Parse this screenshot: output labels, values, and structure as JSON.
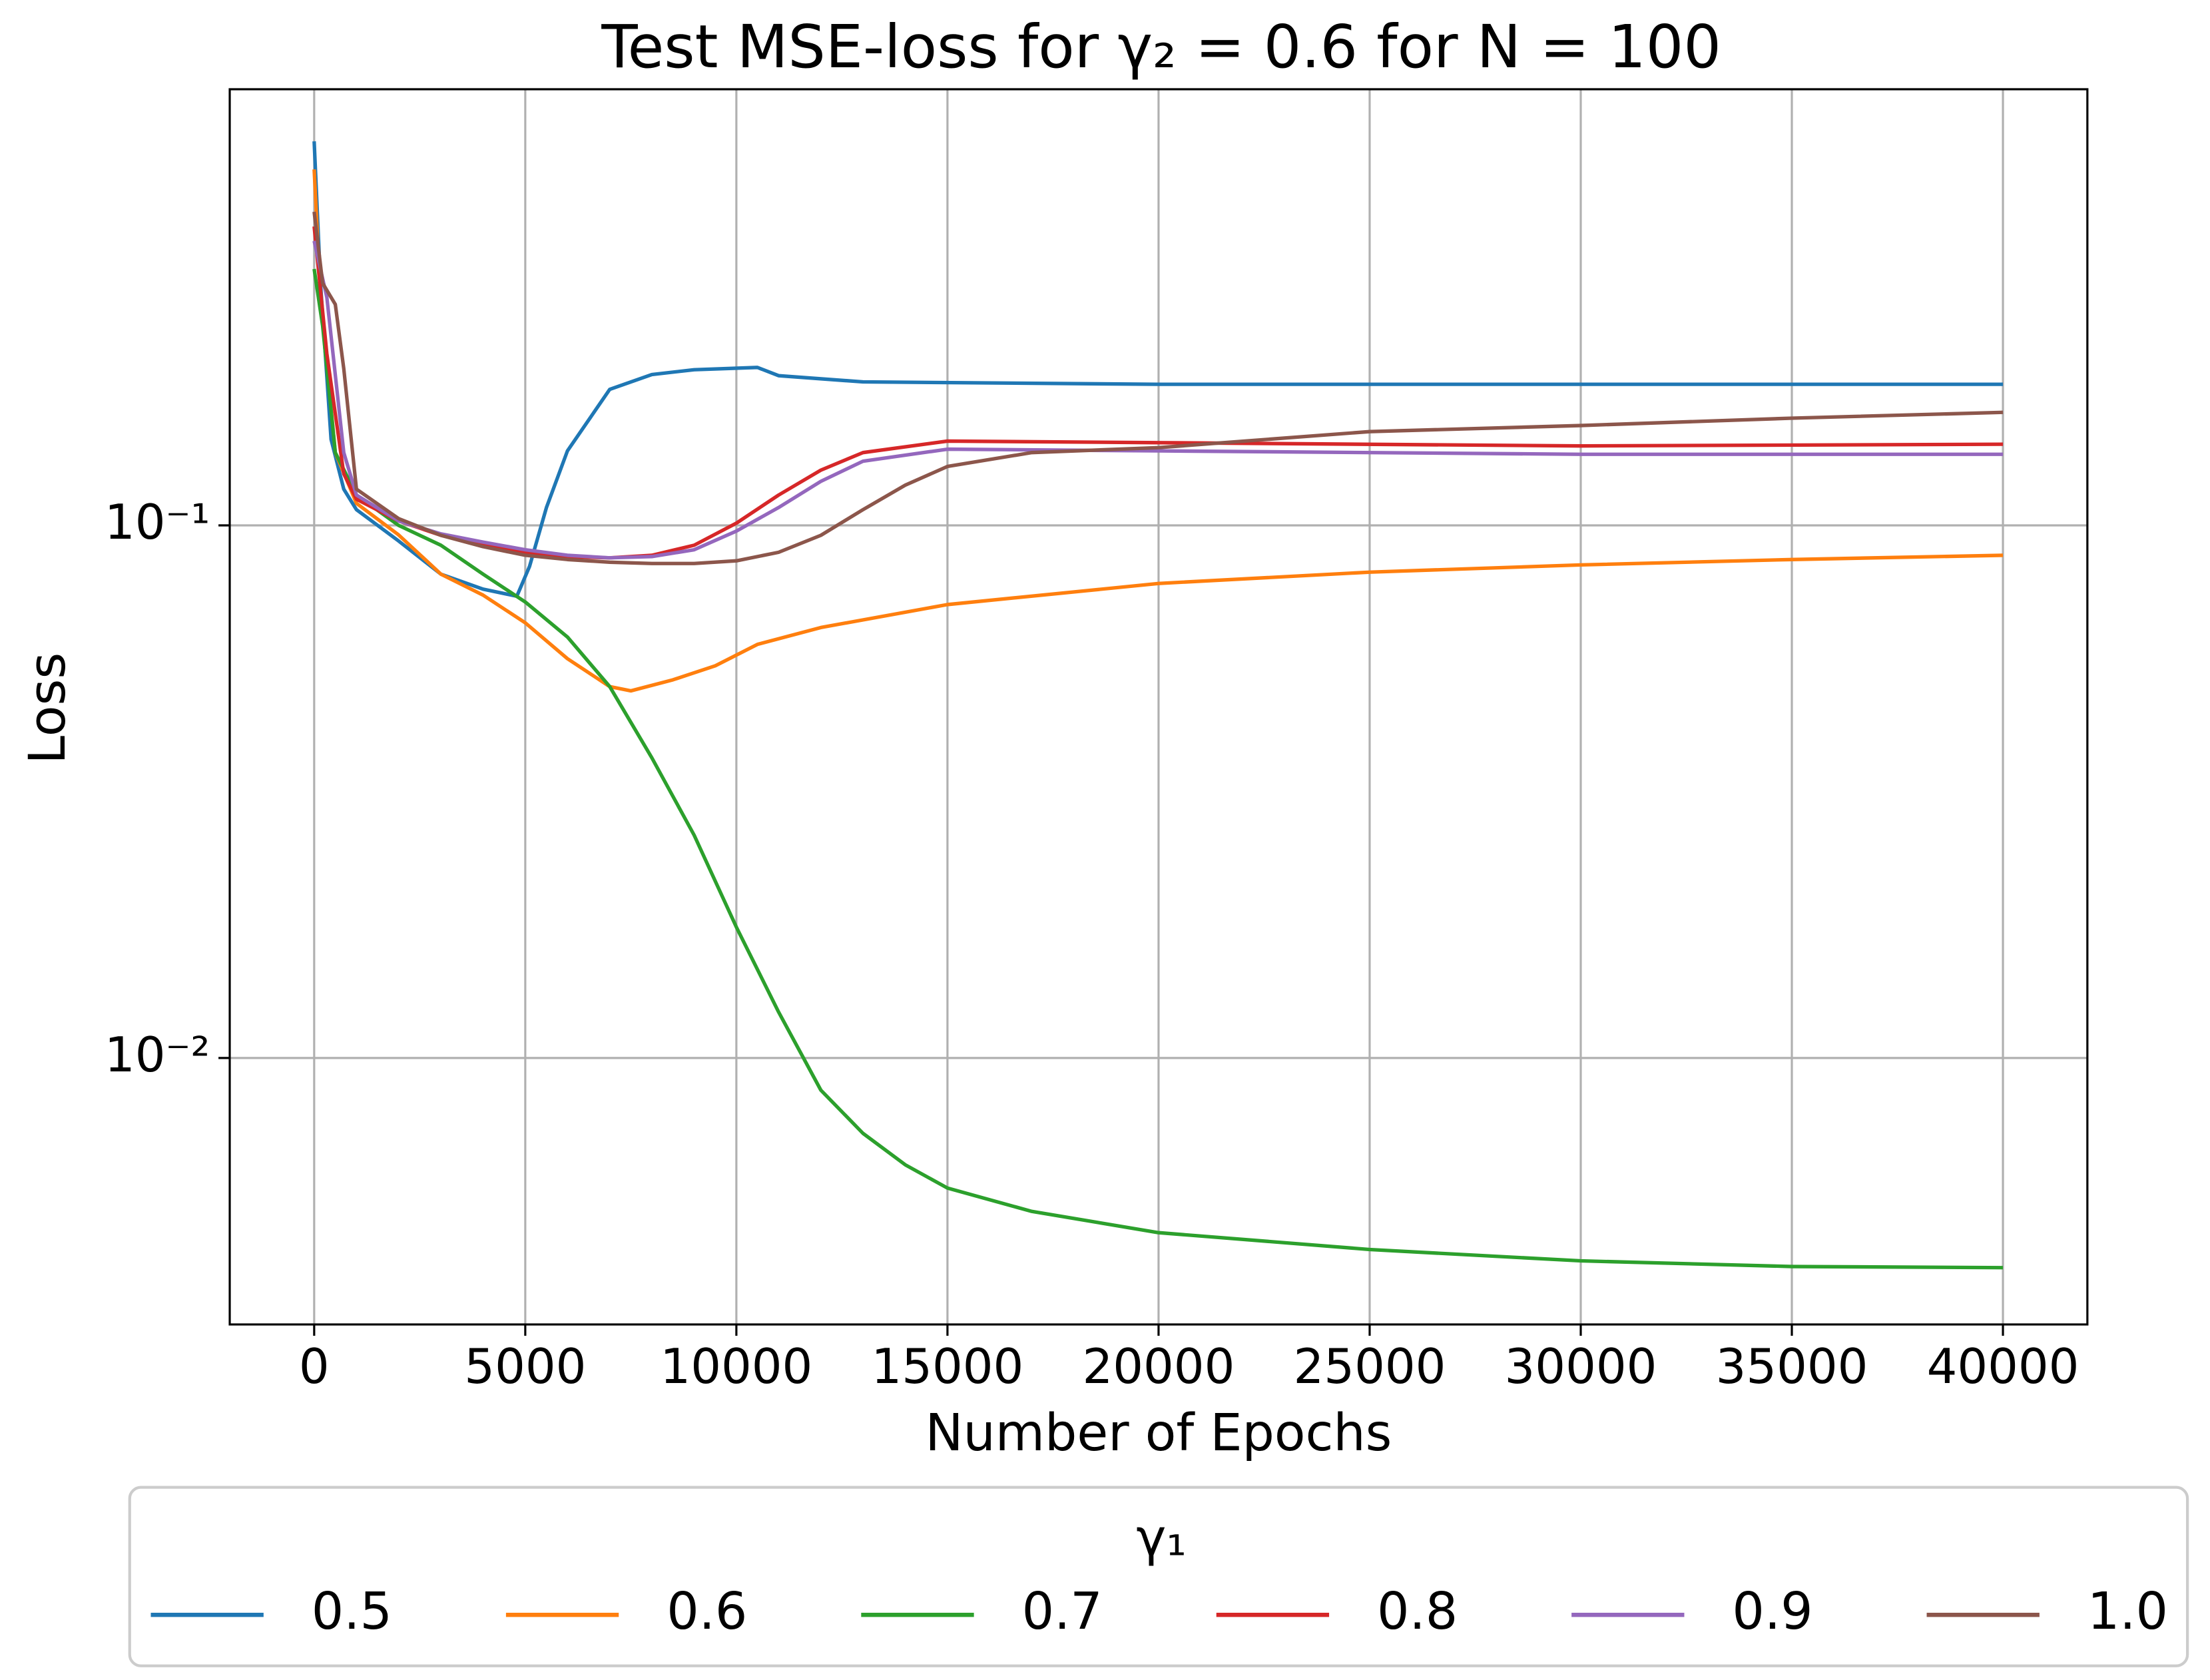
{
  "chart_data": {
    "type": "line",
    "title": "Test MSE-loss for γ₂ = 0.6 for N = 100",
    "x_label": "Number of Epochs",
    "y_label": "Loss",
    "legend_title": "γ₁",
    "legend_position": "bottom",
    "log_y": true,
    "grid": true,
    "xlim": [
      -2000,
      42000
    ],
    "xticks": [
      0,
      5000,
      10000,
      15000,
      20000,
      25000,
      30000,
      35000,
      40000
    ],
    "ylim": [
      0.00316,
      0.659
    ],
    "yticks": [
      {
        "value": 0.01,
        "label": "10⁻²"
      },
      {
        "value": 0.1,
        "label": "10⁻¹"
      }
    ],
    "series": [
      {
        "name": "0.5",
        "color": "#1f77b4",
        "x": [
          0,
          150,
          400,
          700,
          1000,
          2000,
          3000,
          4000,
          4800,
          5100,
          5500,
          6000,
          7000,
          8000,
          9000,
          10500,
          11000,
          13000,
          20000,
          40000
        ],
        "values": [
          0.526,
          0.285,
          0.145,
          0.117,
          0.107,
          0.0935,
          0.081,
          0.0759,
          0.0736,
          0.0837,
          0.108,
          0.138,
          0.18,
          0.192,
          0.196,
          0.198,
          0.191,
          0.186,
          0.184,
          0.184
        ]
      },
      {
        "name": "0.6",
        "color": "#ff7f0e",
        "x": [
          0,
          150,
          500,
          1000,
          2000,
          3000,
          4000,
          5000,
          6000,
          7000,
          7500,
          8500,
          9500,
          10500,
          12000,
          15000,
          20000,
          25000,
          30000,
          35000,
          40000
        ],
        "values": [
          0.466,
          0.268,
          0.137,
          0.11,
          0.096,
          0.081,
          0.074,
          0.0656,
          0.0562,
          0.0498,
          0.0489,
          0.0513,
          0.0545,
          0.0598,
          0.0643,
          0.071,
          0.0778,
          0.0817,
          0.0843,
          0.0863,
          0.0879
        ]
      },
      {
        "name": "0.7",
        "color": "#2ca02c",
        "x": [
          0,
          200,
          500,
          1000,
          2000,
          3000,
          4000,
          5000,
          6000,
          7000,
          8000,
          9000,
          10000,
          11000,
          12000,
          13000,
          14000,
          15000,
          17000,
          20000,
          25000,
          30000,
          35000,
          40000
        ],
        "values": [
          0.303,
          0.237,
          0.137,
          0.114,
          0.1,
          0.0918,
          0.081,
          0.0718,
          0.0617,
          0.0498,
          0.0366,
          0.0262,
          0.0176,
          0.0122,
          0.0087,
          0.00722,
          0.0063,
          0.0057,
          0.00515,
          0.0047,
          0.00437,
          0.00416,
          0.00406,
          0.00404
        ]
      },
      {
        "name": "0.8",
        "color": "#d62728",
        "x": [
          0,
          300,
          700,
          1000,
          2000,
          3000,
          4000,
          5000,
          6000,
          7000,
          8000,
          9000,
          10000,
          11000,
          12000,
          13000,
          15000,
          20000,
          30000,
          40000
        ],
        "values": [
          0.364,
          0.21,
          0.125,
          0.112,
          0.102,
          0.0958,
          0.0918,
          0.089,
          0.0874,
          0.0869,
          0.0879,
          0.0918,
          0.101,
          0.114,
          0.127,
          0.137,
          0.144,
          0.143,
          0.141,
          0.142
        ]
      },
      {
        "name": "0.9",
        "color": "#9467bd",
        "x": [
          0,
          300,
          700,
          1000,
          2000,
          3000,
          4000,
          5000,
          6000,
          7000,
          8000,
          9000,
          10000,
          11000,
          12000,
          13000,
          15000,
          20000,
          30000,
          40000
        ],
        "values": [
          0.342,
          0.268,
          0.137,
          0.114,
          0.102,
          0.0964,
          0.093,
          0.09,
          0.0879,
          0.0869,
          0.0874,
          0.09,
          0.0976,
          0.108,
          0.121,
          0.132,
          0.139,
          0.138,
          0.136,
          0.136
        ]
      },
      {
        "name": "1.0",
        "color": "#8c564b",
        "x": [
          0,
          200,
          500,
          700,
          1000,
          2000,
          3000,
          4000,
          5000,
          6000,
          7000,
          8000,
          9000,
          10000,
          11000,
          12000,
          13000,
          14000,
          15000,
          17000,
          20000,
          25000,
          30000,
          35000,
          40000
        ],
        "values": [
          0.388,
          0.285,
          0.26,
          0.197,
          0.117,
          0.103,
          0.0958,
          0.0912,
          0.0879,
          0.0863,
          0.0853,
          0.0848,
          0.0848,
          0.0858,
          0.089,
          0.0958,
          0.107,
          0.119,
          0.129,
          0.137,
          0.14,
          0.15,
          0.154,
          0.159,
          0.163
        ]
      }
    ]
  }
}
